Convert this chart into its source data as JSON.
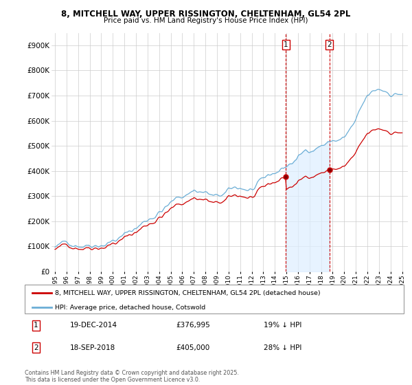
{
  "title_line1": "8, MITCHELL WAY, UPPER RISSINGTON, CHELTENHAM, GL54 2PL",
  "title_line2": "Price paid vs. HM Land Registry's House Price Index (HPI)",
  "ylim": [
    0,
    950000
  ],
  "yticks": [
    0,
    100000,
    200000,
    300000,
    400000,
    500000,
    600000,
    700000,
    800000,
    900000
  ],
  "ytick_labels": [
    "£0",
    "£100K",
    "£200K",
    "£300K",
    "£400K",
    "£500K",
    "£600K",
    "£700K",
    "£800K",
    "£900K"
  ],
  "xlim_start": 1994.7,
  "xlim_end": 2025.5,
  "xticks": [
    1995,
    1996,
    1997,
    1998,
    1999,
    2000,
    2001,
    2002,
    2003,
    2004,
    2005,
    2006,
    2007,
    2008,
    2009,
    2010,
    2011,
    2012,
    2013,
    2014,
    2015,
    2016,
    2017,
    2018,
    2019,
    2020,
    2021,
    2022,
    2023,
    2024,
    2025
  ],
  "hpi_color": "#6baed6",
  "price_color": "#cc0000",
  "shade_color": "#ddeeff",
  "legend_label_1": "8, MITCHELL WAY, UPPER RISSINGTON, CHELTENHAM, GL54 2PL (detached house)",
  "legend_label_2": "HPI: Average price, detached house, Cotswold",
  "transaction_1_date": "19-DEC-2014",
  "transaction_1_price": "£376,995",
  "transaction_1_hpi": "19% ↓ HPI",
  "transaction_1_x": 2014.96,
  "transaction_1_y": 376995,
  "transaction_2_date": "18-SEP-2018",
  "transaction_2_price": "£405,000",
  "transaction_2_hpi": "28% ↓ HPI",
  "transaction_2_x": 2018.71,
  "transaction_2_y": 405000,
  "shade_x1": 2014.96,
  "shade_x2": 2018.71,
  "footnote": "Contains HM Land Registry data © Crown copyright and database right 2025.\nThis data is licensed under the Open Government Licence v3.0."
}
